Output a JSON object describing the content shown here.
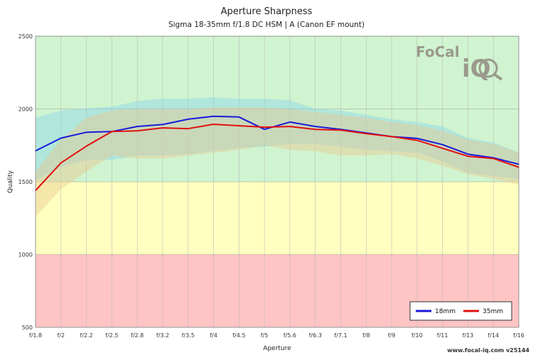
{
  "chart_data": {
    "type": "line",
    "title": "Aperture Sharpness",
    "subtitle": "Sigma 18-35mm f/1.8 DC HSM | A (Canon EF mount)",
    "xlabel": "Aperture",
    "ylabel": "Quality",
    "ylim": [
      500,
      2500
    ],
    "yticks": [
      500,
      1000,
      1500,
      2000,
      2500
    ],
    "grid": true,
    "legend_position": "bottom-right",
    "categories": [
      "f/1.8",
      "f/2",
      "f/2.2",
      "f/2.5",
      "f/2.8",
      "f/3.2",
      "f/3.5",
      "f/4",
      "f/4.5",
      "f/5",
      "f/5.6",
      "f/6.3",
      "f/7.1",
      "f/8",
      "f/9",
      "f/10",
      "f/11",
      "f/13",
      "f/14",
      "f/16"
    ],
    "zones": [
      {
        "from": 500,
        "to": 1000,
        "color": "#ffc4c4"
      },
      {
        "from": 1000,
        "to": 1500,
        "color": "#ffffc0"
      },
      {
        "from": 1500,
        "to": 2500,
        "color": "#d0f4d0"
      }
    ],
    "series": [
      {
        "name": "18mm",
        "color": "#1a1adb",
        "band_color": "#8ad4e8",
        "values": [
          1712,
          1800,
          1840,
          1845,
          1880,
          1893,
          1930,
          1950,
          1945,
          1860,
          1910,
          1880,
          1860,
          1835,
          1810,
          1798,
          1755,
          1690,
          1665,
          1620
        ],
        "upper": [
          1940,
          1990,
          2005,
          2015,
          2055,
          2070,
          2070,
          2080,
          2070,
          2070,
          2060,
          2000,
          1990,
          1960,
          1930,
          1910,
          1880,
          1800,
          1770,
          1700
        ],
        "lower": [
          1510,
          1600,
          1650,
          1650,
          1680,
          1680,
          1690,
          1710,
          1730,
          1740,
          1760,
          1760,
          1740,
          1720,
          1710,
          1700,
          1640,
          1560,
          1540,
          1520
        ]
      },
      {
        "name": "35mm",
        "color": "#e01010",
        "band_color": "#e8c890",
        "values": [
          1440,
          1630,
          1745,
          1845,
          1850,
          1870,
          1865,
          1895,
          1885,
          1875,
          1880,
          1860,
          1855,
          1830,
          1810,
          1785,
          1730,
          1675,
          1660,
          1600
        ],
        "upper": [
          1570,
          1790,
          1940,
          1990,
          2000,
          2000,
          2000,
          2010,
          2010,
          2010,
          2000,
          1980,
          1960,
          1940,
          1910,
          1890,
          1850,
          1790,
          1760,
          1700
        ],
        "lower": [
          1260,
          1450,
          1570,
          1680,
          1660,
          1660,
          1680,
          1700,
          1720,
          1750,
          1720,
          1710,
          1680,
          1680,
          1690,
          1660,
          1610,
          1550,
          1520,
          1480
        ]
      }
    ]
  },
  "logo": {
    "text_top": "FoCal",
    "text_bottom": "iQ"
  },
  "footer": "www.focal-iq.com  v25144"
}
